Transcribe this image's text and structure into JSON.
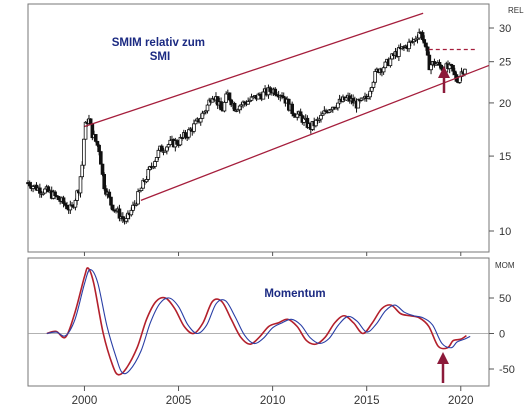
{
  "chart_data": [
    {
      "type": "candlestick",
      "title": "SMIM relativ zum SMI",
      "y_unit_label": "REL",
      "y_scale": "log",
      "ylim": [
        9,
        33
      ],
      "y_ticks": [
        10,
        15,
        20,
        25,
        30
      ],
      "x_ticks": [
        2000,
        2005,
        2010,
        2015,
        2020
      ],
      "xlim": [
        1997.0,
        2021.5
      ],
      "series": [
        {
          "points": [
            [
              1997.0,
              13.0
            ],
            [
              1997.5,
              12.6
            ],
            [
              1998.0,
              12.4
            ],
            [
              1998.5,
              12.0
            ],
            [
              1999.0,
              11.5
            ],
            [
              1999.3,
              11.2
            ],
            [
              1999.7,
              12.6
            ],
            [
              1999.9,
              14.5
            ],
            [
              2000.0,
              17.3
            ],
            [
              2000.2,
              18.5
            ],
            [
              2000.4,
              17.0
            ],
            [
              2000.8,
              15.5
            ],
            [
              2001.0,
              13.0
            ],
            [
              2001.4,
              11.6
            ],
            [
              2001.8,
              11.0
            ],
            [
              2002.2,
              10.5
            ],
            [
              2002.6,
              11.4
            ],
            [
              2003.0,
              12.5
            ],
            [
              2003.5,
              14.0
            ],
            [
              2004.0,
              15.5
            ],
            [
              2004.5,
              16.0
            ],
            [
              2005.0,
              16.2
            ],
            [
              2005.5,
              17.0
            ],
            [
              2006.0,
              18.0
            ],
            [
              2006.5,
              19.5
            ],
            [
              2006.8,
              21.0
            ],
            [
              2007.0,
              20.5
            ],
            [
              2007.3,
              19.0
            ],
            [
              2007.6,
              21.0
            ],
            [
              2008.0,
              19.5
            ],
            [
              2008.5,
              20.0
            ],
            [
              2009.0,
              20.5
            ],
            [
              2009.5,
              21.0
            ],
            [
              2010.0,
              21.5
            ],
            [
              2010.5,
              21.0
            ],
            [
              2011.0,
              19.2
            ],
            [
              2011.5,
              18.5
            ],
            [
              2012.0,
              17.5
            ],
            [
              2012.5,
              18.3
            ],
            [
              2013.0,
              19.5
            ],
            [
              2013.5,
              20.0
            ],
            [
              2014.0,
              20.5
            ],
            [
              2014.5,
              19.8
            ],
            [
              2015.0,
              20.5
            ],
            [
              2015.3,
              22.5
            ],
            [
              2015.6,
              24.0
            ],
            [
              2016.0,
              24.5
            ],
            [
              2016.5,
              26.0
            ],
            [
              2017.0,
              27.0
            ],
            [
              2017.5,
              28.0
            ],
            [
              2017.8,
              29.5
            ],
            [
              2018.0,
              28.5
            ],
            [
              2018.3,
              24.5
            ],
            [
              2018.6,
              24.8
            ],
            [
              2019.0,
              24.3
            ],
            [
              2019.5,
              24.0
            ],
            [
              2019.8,
              22.5
            ],
            [
              2020.0,
              23.5
            ],
            [
              2020.3,
              24.6
            ]
          ]
        },
        {
          "name": "upper channel",
          "points": [
            [
              2000.0,
              17.6
            ],
            [
              2018.0,
              32.5
            ]
          ]
        },
        {
          "name": "lower channel",
          "points": [
            [
              2003.0,
              11.8
            ],
            [
              2021.5,
              24.5
            ]
          ]
        },
        {
          "name": "resistance",
          "points": [
            [
              2018.3,
              26.7
            ],
            [
              2020.8,
              26.7
            ]
          ]
        }
      ]
    },
    {
      "type": "line",
      "title": "Momentum",
      "y_unit_label": "MOM",
      "ylim": [
        -65,
        80
      ],
      "y_ticks": [
        -50,
        0,
        50
      ],
      "x_ticks": [
        2000,
        2005,
        2010,
        2015,
        2020
      ],
      "xlim": [
        1997.0,
        2021.5
      ],
      "series": [
        {
          "x": [
            1998.0,
            1998.5,
            1999.0,
            1999.5,
            2000.0,
            2000.2,
            2000.5,
            2001.0,
            2001.5,
            2001.8,
            2002.2,
            2002.8,
            2003.3,
            2003.8,
            2004.3,
            2004.8,
            2005.3,
            2005.8,
            2006.3,
            2006.8,
            2007.3,
            2007.8,
            2008.3,
            2008.8,
            2009.3,
            2009.8,
            2010.3,
            2010.8,
            2011.3,
            2011.8,
            2012.3,
            2012.8,
            2013.3,
            2013.8,
            2014.3,
            2014.8,
            2015.3,
            2015.8,
            2016.3,
            2016.8,
            2017.3,
            2017.8,
            2018.3,
            2018.8,
            2019.3,
            2019.6,
            2020.0,
            2020.3
          ],
          "values": [
            0,
            3,
            -5,
            30,
            80,
            92,
            70,
            0,
            -45,
            -58,
            -50,
            -20,
            20,
            45,
            50,
            35,
            10,
            0,
            15,
            45,
            45,
            20,
            -5,
            -15,
            -5,
            10,
            15,
            20,
            10,
            -10,
            -15,
            -5,
            15,
            25,
            15,
            0,
            15,
            35,
            40,
            28,
            25,
            22,
            10,
            -18,
            -20,
            -10,
            -8,
            -3
          ],
          "color": "#b3202c"
        },
        {
          "x": [
            1998.0,
            1998.5,
            1999.0,
            1999.5,
            2000.0,
            2000.3,
            2000.7,
            2001.2,
            2001.7,
            2002.0,
            2002.4,
            2003.0,
            2003.5,
            2004.0,
            2004.5,
            2005.0,
            2005.5,
            2006.0,
            2006.5,
            2007.0,
            2007.5,
            2008.0,
            2008.5,
            2009.0,
            2009.5,
            2010.0,
            2010.5,
            2011.0,
            2011.5,
            2012.0,
            2012.5,
            2013.0,
            2013.5,
            2014.0,
            2014.5,
            2015.0,
            2015.5,
            2016.0,
            2016.5,
            2017.0,
            2017.5,
            2018.0,
            2018.5,
            2019.0,
            2019.5,
            2019.8,
            2020.2,
            2020.5
          ],
          "values": [
            0,
            2,
            -3,
            20,
            70,
            90,
            72,
            10,
            -35,
            -55,
            -52,
            -25,
            15,
            42,
            50,
            38,
            12,
            0,
            12,
            42,
            46,
            24,
            -2,
            -14,
            -7,
            8,
            15,
            20,
            12,
            -6,
            -14,
            -7,
            12,
            24,
            17,
            2,
            13,
            32,
            40,
            30,
            25,
            22,
            12,
            -14,
            -20,
            -12,
            -8,
            -4
          ],
          "color": "#2a3fa6"
        }
      ]
    }
  ],
  "colors": {
    "candles": "#111111",
    "channel": "#a51e3c",
    "arrow": "#8c1a3a",
    "title": "#1b2a82",
    "axis": "#333333"
  },
  "icons": [
    "up-arrow-icon"
  ]
}
